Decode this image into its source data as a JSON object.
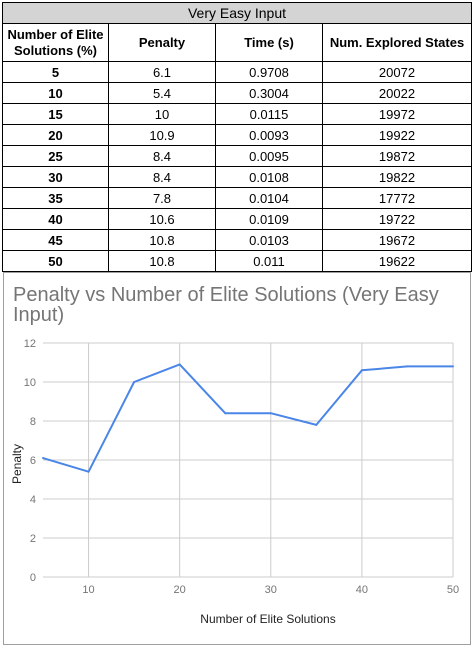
{
  "table": {
    "caption": "Very Easy Input",
    "headers": [
      "Number of Elite Solutions (%)",
      "Penalty",
      "Time (s)",
      "Num. Explored States"
    ],
    "rows": [
      [
        "5",
        "6.1",
        "0.9708",
        "20072"
      ],
      [
        "10",
        "5.4",
        "0.3004",
        "20022"
      ],
      [
        "15",
        "10",
        "0.0115",
        "19972"
      ],
      [
        "20",
        "10.9",
        "0.0093",
        "19922"
      ],
      [
        "25",
        "8.4",
        "0.0095",
        "19872"
      ],
      [
        "30",
        "8.4",
        "0.0108",
        "19822"
      ],
      [
        "35",
        "7.8",
        "0.0104",
        "17772"
      ],
      [
        "40",
        "10.6",
        "0.0109",
        "19722"
      ],
      [
        "45",
        "10.8",
        "0.0103",
        "19672"
      ],
      [
        "50",
        "10.8",
        "0.011",
        "19622"
      ]
    ]
  },
  "chart_data": {
    "type": "line",
    "title": "Penalty vs Number of Elite Solutions (Very Easy Input)",
    "xlabel": "Number of Elite Solutions",
    "ylabel": "Penalty",
    "x": [
      5,
      10,
      15,
      20,
      25,
      30,
      35,
      40,
      45,
      50
    ],
    "series": [
      {
        "values": [
          6.1,
          5.4,
          10,
          10.9,
          8.4,
          8.4,
          7.8,
          10.6,
          10.8,
          10.8
        ],
        "color": "#4a86e8"
      }
    ],
    "xlim": [
      5,
      50
    ],
    "ylim": [
      0,
      12
    ],
    "xticks": [
      10,
      20,
      30,
      40,
      50
    ],
    "yticks": [
      0,
      2,
      4,
      6,
      8,
      10,
      12
    ],
    "grid": true,
    "legend": "none"
  }
}
